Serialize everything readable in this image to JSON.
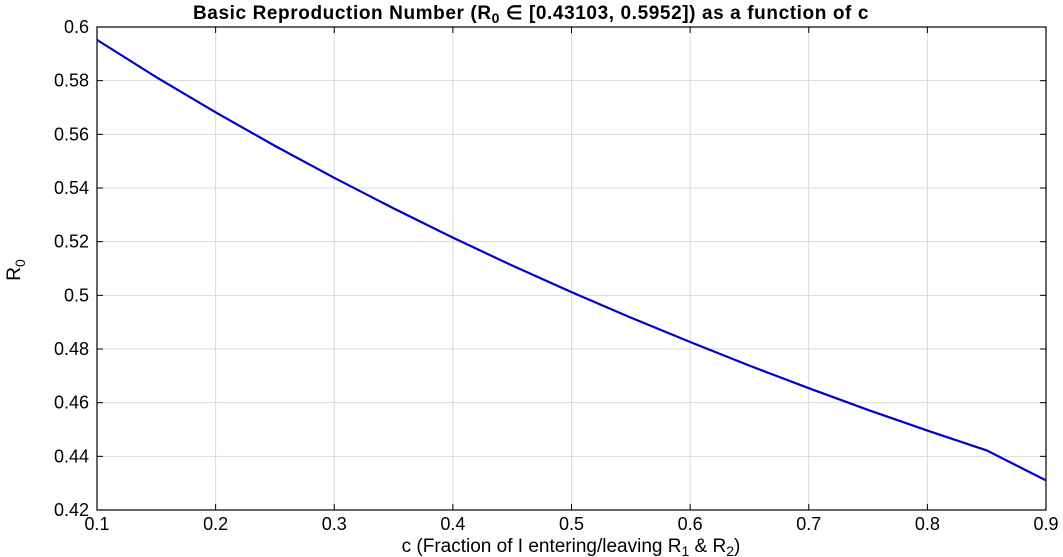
{
  "chart_data": {
    "type": "line",
    "title": {
      "prefix": "Basic Reproduction Number (R",
      "sub": "0",
      "suffix": " ∈ [0.43103, 0.5952]) as a function of c"
    },
    "xlabel": {
      "part1": "c (Fraction of I entering/leaving R",
      "sub1": "1",
      "part2": " & R",
      "sub2": "2",
      "part3": ")"
    },
    "ylabel": {
      "main": "R",
      "sub": "0"
    },
    "xlim": [
      0.1,
      0.9
    ],
    "ylim": [
      0.42,
      0.6
    ],
    "xticks": [
      0.1,
      0.2,
      0.3,
      0.4,
      0.5,
      0.6,
      0.7,
      0.8,
      0.9
    ],
    "xtick_labels": [
      "0.1",
      "0.2",
      "0.3",
      "0.4",
      "0.5",
      "0.6",
      "0.7",
      "0.8",
      "0.9"
    ],
    "yticks": [
      0.42,
      0.44,
      0.46,
      0.48,
      0.5,
      0.52,
      0.54,
      0.56,
      0.58,
      0.6
    ],
    "ytick_labels": [
      "0.42",
      "0.44",
      "0.46",
      "0.48",
      "0.5",
      "0.52",
      "0.54",
      "0.56",
      "0.58",
      "0.6"
    ],
    "grid": true,
    "series": [
      {
        "color": "#0000cc",
        "x": [
          0.1,
          0.15,
          0.2,
          0.25,
          0.3,
          0.35,
          0.4,
          0.45,
          0.5,
          0.55,
          0.6,
          0.65,
          0.7,
          0.75,
          0.8,
          0.85,
          0.9
        ],
        "y": [
          0.5952,
          0.5813,
          0.5682,
          0.5557,
          0.5438,
          0.5324,
          0.5215,
          0.5111,
          0.5012,
          0.4917,
          0.4826,
          0.4738,
          0.4654,
          0.4573,
          0.4496,
          0.4422,
          0.43103
        ]
      }
    ]
  }
}
